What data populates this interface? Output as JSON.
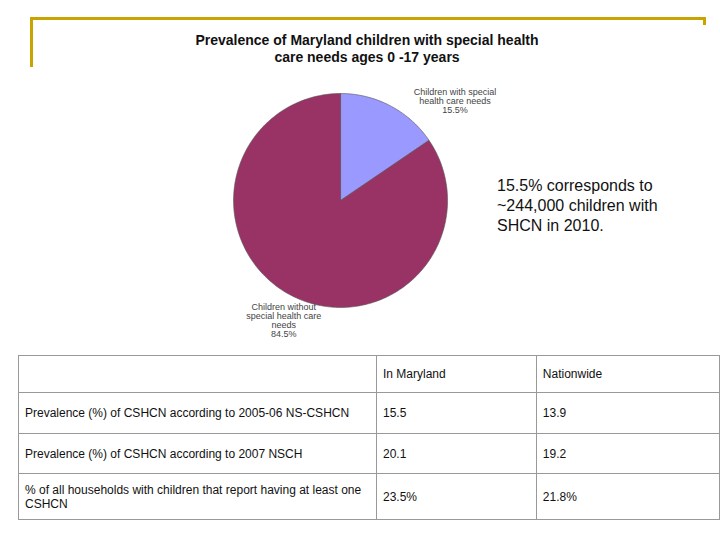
{
  "chart_data": {
    "type": "pie",
    "title": "Prevalence of Maryland children with special health care needs ages 0 -17 years",
    "categories": [
      "Children with special health care needs",
      "Children without special health care needs"
    ],
    "values": [
      15.5,
      84.5
    ],
    "value_labels": [
      "15.5%",
      "84.5%"
    ],
    "colors": [
      "#9999ff",
      "#993366"
    ],
    "data_labels": true,
    "annotations": [
      "15.5% corresponds to ~244,000 children with SHCN in 2010."
    ]
  },
  "table": {
    "columns": [
      "In Maryland",
      "Nationwide"
    ],
    "rows": [
      [
        "Prevalence (%) of CSHCN according to 2005-06 NS-CSHCN",
        "15.5",
        "13.9"
      ],
      [
        "Prevalence (%) of CSHCN according to 2007 NSCH",
        "20.1",
        "19.2"
      ],
      [
        "% of all households with children that report having at least one CSHCN",
        "23.5%",
        "21.8%"
      ]
    ]
  }
}
